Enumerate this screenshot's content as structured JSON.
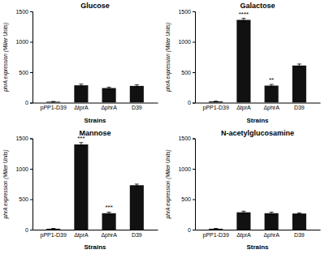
{
  "chart_data": [
    {
      "type": "bar",
      "title": "Glucose",
      "categories": [
        "pPP1-D39",
        "ΔtprA",
        "ΔphrA",
        "D39"
      ],
      "values": [
        15,
        285,
        240,
        275
      ],
      "errors": [
        5,
        20,
        15,
        18
      ],
      "significance": [
        null,
        null,
        null,
        null
      ],
      "color": "#111111",
      "xlabel": "Strains",
      "ylabel": "phrA expression (Miller Units)",
      "ylim": [
        0,
        1500
      ],
      "yticks": [
        0,
        500,
        1000,
        1500
      ]
    },
    {
      "type": "bar",
      "title": "Galactose",
      "categories": [
        "pPP1-D39",
        "ΔtprA",
        "ΔphrA",
        "D39"
      ],
      "values": [
        20,
        1360,
        280,
        610
      ],
      "errors": [
        5,
        25,
        20,
        25
      ],
      "significance": [
        null,
        "****",
        "**",
        null
      ],
      "color": "#111111",
      "xlabel": "Strains",
      "ylabel": "phrA expression (Miller Units)",
      "ylim": [
        0,
        1500
      ],
      "yticks": [
        0,
        500,
        1000,
        1500
      ]
    },
    {
      "type": "bar",
      "title": "Mannose",
      "categories": [
        "pPP1-D39",
        "ΔtprA",
        "ΔphrA",
        "D39"
      ],
      "values": [
        15,
        1400,
        270,
        730
      ],
      "errors": [
        5,
        30,
        18,
        18
      ],
      "significance": [
        null,
        "***",
        "***",
        null
      ],
      "color": "#111111",
      "xlabel": "Strains",
      "ylabel": "phrA expression (Miller Units)",
      "ylim": [
        0,
        1500
      ],
      "yticks": [
        0,
        500,
        1000,
        1500
      ]
    },
    {
      "type": "bar",
      "title": "N-acetylglucosamine",
      "categories": [
        "pPP1-D39",
        "ΔtprA",
        "ΔphrA",
        "D39"
      ],
      "values": [
        15,
        285,
        270,
        265
      ],
      "errors": [
        5,
        18,
        18,
        12
      ],
      "significance": [
        null,
        null,
        null,
        null
      ],
      "color": "#111111",
      "xlabel": "Strains",
      "ylabel": "phrA expression (Miller Units)",
      "ylim": [
        0,
        1500
      ],
      "yticks": [
        0,
        500,
        1000,
        1500
      ]
    }
  ]
}
